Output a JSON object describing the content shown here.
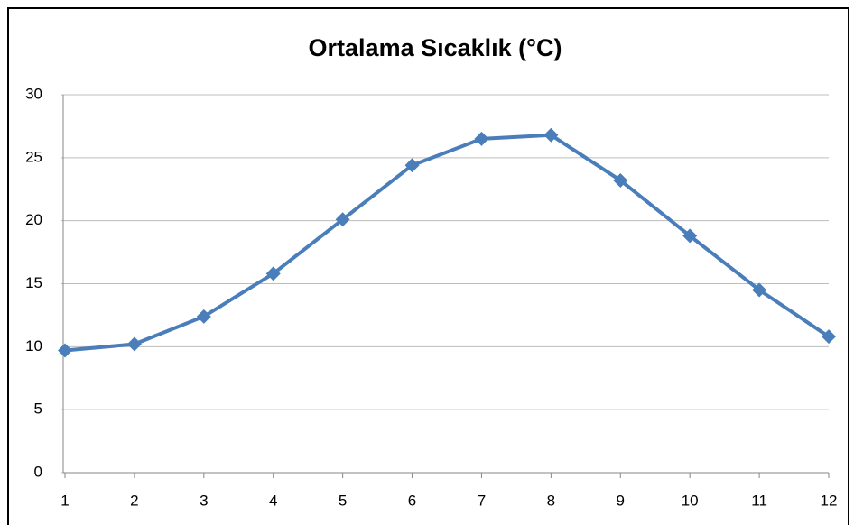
{
  "chart_data": {
    "type": "line",
    "title": "Ortalama Sıcaklık (°C)",
    "x": [
      1,
      2,
      3,
      4,
      5,
      6,
      7,
      8,
      9,
      10,
      11,
      12
    ],
    "series": [
      {
        "color": "#4a7ebb",
        "values": [
          9.7,
          10.2,
          12.4,
          15.8,
          20.1,
          24.4,
          26.5,
          26.8,
          23.2,
          18.8,
          14.5,
          10.8
        ]
      }
    ],
    "xlim": [
      1,
      12
    ],
    "xticks": [
      1,
      2,
      3,
      4,
      5,
      6,
      7,
      8,
      9,
      10,
      11,
      12
    ],
    "ylim": [
      0,
      30
    ],
    "yticks": [
      0,
      5,
      10,
      15,
      20,
      25,
      30
    ],
    "grid": true
  }
}
